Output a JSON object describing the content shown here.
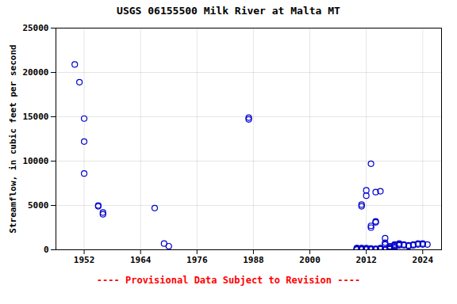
{
  "chart_data": {
    "type": "scatter",
    "title": "USGS 06155500 Milk River at Malta MT",
    "ylabel": "Streamflow, in cubic feet per second",
    "annotations": [
      {
        "text": "---- Provisional Data Subject to Revision ----",
        "color": "red"
      }
    ],
    "x": [
      1950,
      1951,
      1952,
      1952,
      1952,
      1955,
      1955,
      1956,
      1956,
      1967,
      1969,
      1970,
      1987,
      1987,
      2011,
      2011,
      2012,
      2012,
      2013,
      2013,
      2013,
      2014,
      2014,
      2014,
      2015,
      2016,
      2016,
      2016,
      2010,
      2010,
      2010,
      2010,
      2010,
      2010,
      2011,
      2011,
      2011,
      2011,
      2011,
      2011,
      2012,
      2012,
      2012,
      2012,
      2012,
      2013,
      2013,
      2013,
      2013,
      2013,
      2014,
      2014,
      2014,
      2014,
      2015,
      2015,
      2015,
      2015,
      2016,
      2016,
      2017,
      2017,
      2017,
      2017,
      2017,
      2017,
      2018,
      2018,
      2018,
      2018,
      2018,
      2019,
      2019,
      2019,
      2020,
      2020,
      2021,
      2021,
      2022,
      2022,
      2023,
      2023,
      2024,
      2024,
      2025
    ],
    "values": [
      20900,
      18900,
      14800,
      12200,
      8600,
      5000,
      4900,
      4200,
      4000,
      4700,
      700,
      400,
      14900,
      14700,
      5100,
      4900,
      6700,
      6100,
      2700,
      2500,
      9700,
      6500,
      3200,
      3100,
      6600,
      1300,
      800,
      600,
      50,
      30,
      80,
      120,
      200,
      160,
      200,
      150,
      100,
      80,
      60,
      40,
      100,
      80,
      60,
      40,
      200,
      150,
      100,
      80,
      60,
      40,
      100,
      80,
      60,
      40,
      200,
      150,
      100,
      80,
      60,
      40,
      400,
      300,
      200,
      150,
      100,
      80,
      600,
      500,
      400,
      300,
      200,
      700,
      600,
      500,
      600,
      500,
      500,
      400,
      600,
      500,
      700,
      600,
      700,
      600,
      600
    ],
    "color": "#0000cc",
    "marker": "circle",
    "xlim": [
      1946,
      2028
    ],
    "xticks": [
      1952,
      1964,
      1976,
      1988,
      2000,
      2012,
      2024
    ],
    "ylim": [
      0,
      25000
    ],
    "yticks": [
      0,
      5000,
      10000,
      15000,
      20000,
      25000
    ],
    "grid": true
  }
}
